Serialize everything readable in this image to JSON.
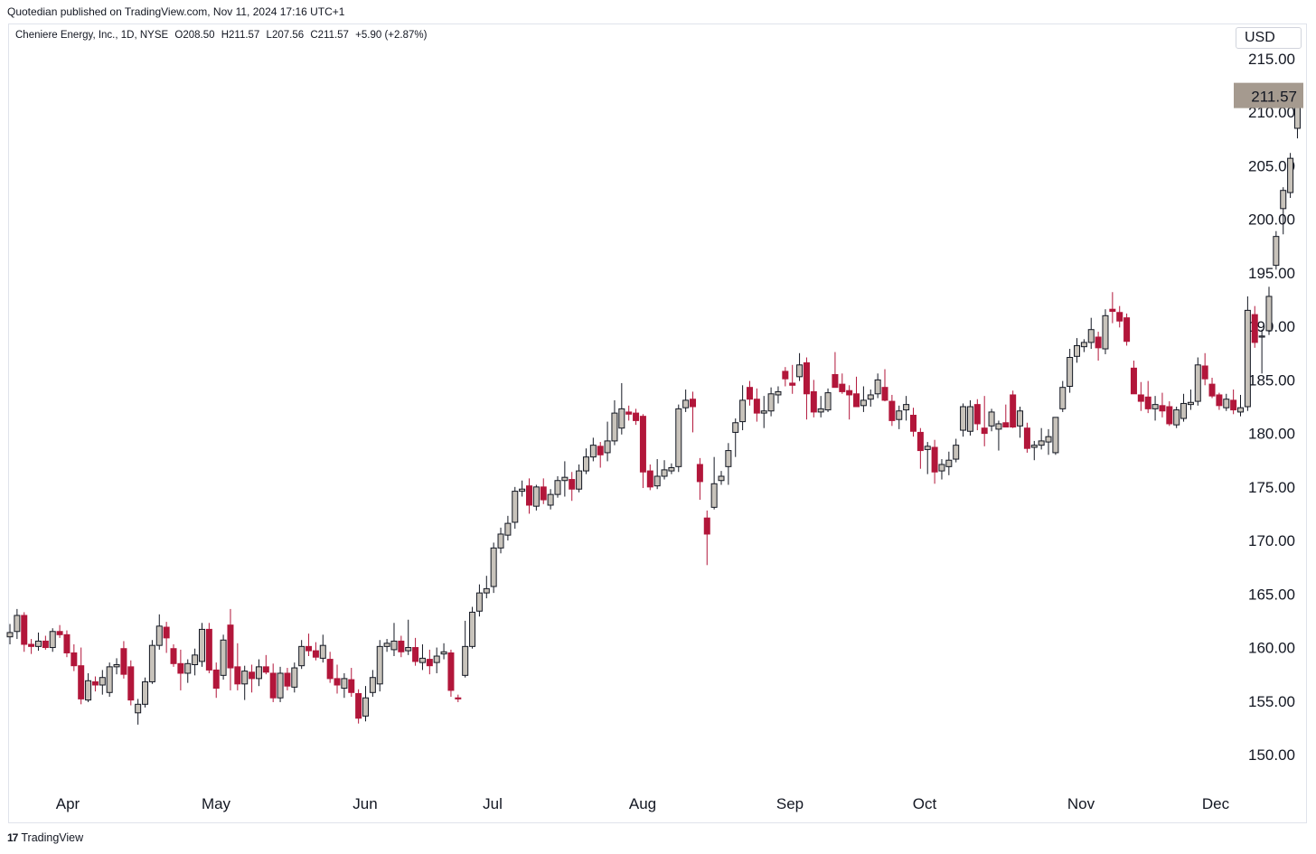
{
  "header": {
    "published": "Quotedian published on TradingView.com, Nov 11, 2024 17:16 UTC+1"
  },
  "legend": {
    "symbol": "Cheniere Energy, Inc., 1D, NYSE",
    "open": "O208.50",
    "high": "H211.57",
    "low": "L207.56",
    "close": "C211.57",
    "change": "+5.90 (+2.87%)"
  },
  "currency": "USD",
  "last_price_label": "211.57",
  "footer": {
    "logo": "17",
    "brand": "TradingView"
  },
  "colors": {
    "up": "#c8c3bb",
    "down": "#b2163a",
    "wick": "#131722",
    "price_tag": "#a59a8f"
  },
  "chart_data": {
    "type": "candlestick",
    "title": "Cheniere Energy, Inc., 1D, NYSE",
    "ylim": [
      147,
      217
    ],
    "yticks": [
      "150.00",
      "155.00",
      "160.00",
      "165.00",
      "170.00",
      "175.00",
      "180.00",
      "185.00",
      "190.00",
      "195.00",
      "200.00",
      "205.00",
      "210.00",
      "215.00"
    ],
    "xticks": [
      "Apr",
      "May",
      "Jun",
      "Jul",
      "Aug",
      "Sep",
      "Oct",
      "Nov",
      "Dec"
    ],
    "last_price": 211.57,
    "candles": [
      {
        "o": 161.0,
        "h": 162.2,
        "l": 160.3,
        "c": 161.4
      },
      {
        "o": 161.5,
        "h": 163.6,
        "l": 160.8,
        "c": 163.0
      },
      {
        "o": 163.0,
        "h": 163.3,
        "l": 159.6,
        "c": 160.3
      },
      {
        "o": 160.3,
        "h": 160.8,
        "l": 159.4,
        "c": 160.1
      },
      {
        "o": 160.1,
        "h": 161.4,
        "l": 159.7,
        "c": 160.6
      },
      {
        "o": 160.6,
        "h": 161.1,
        "l": 159.8,
        "c": 160.0
      },
      {
        "o": 160.0,
        "h": 161.8,
        "l": 159.6,
        "c": 161.5
      },
      {
        "o": 161.5,
        "h": 162.1,
        "l": 160.9,
        "c": 161.2
      },
      {
        "o": 161.2,
        "h": 161.6,
        "l": 159.1,
        "c": 159.5
      },
      {
        "o": 159.5,
        "h": 160.3,
        "l": 157.8,
        "c": 158.3
      },
      {
        "o": 158.3,
        "h": 160.0,
        "l": 154.7,
        "c": 155.2
      },
      {
        "o": 155.1,
        "h": 157.6,
        "l": 154.9,
        "c": 156.9
      },
      {
        "o": 156.8,
        "h": 157.3,
        "l": 155.9,
        "c": 156.5
      },
      {
        "o": 156.5,
        "h": 157.9,
        "l": 155.6,
        "c": 157.2
      },
      {
        "o": 155.8,
        "h": 158.6,
        "l": 155.4,
        "c": 158.2
      },
      {
        "o": 158.2,
        "h": 159.0,
        "l": 157.5,
        "c": 158.4
      },
      {
        "o": 159.9,
        "h": 160.6,
        "l": 157.1,
        "c": 157.5
      },
      {
        "o": 158.2,
        "h": 158.8,
        "l": 154.6,
        "c": 155.1
      },
      {
        "o": 153.9,
        "h": 155.2,
        "l": 152.8,
        "c": 154.7
      },
      {
        "o": 154.7,
        "h": 157.2,
        "l": 154.4,
        "c": 156.8
      },
      {
        "o": 156.8,
        "h": 160.7,
        "l": 156.6,
        "c": 160.2
      },
      {
        "o": 160.2,
        "h": 163.1,
        "l": 159.8,
        "c": 162.0
      },
      {
        "o": 161.9,
        "h": 162.4,
        "l": 159.5,
        "c": 160.9
      },
      {
        "o": 159.9,
        "h": 160.3,
        "l": 158.2,
        "c": 158.5
      },
      {
        "o": 158.5,
        "h": 159.8,
        "l": 156.0,
        "c": 157.6
      },
      {
        "o": 157.6,
        "h": 158.9,
        "l": 156.7,
        "c": 158.5
      },
      {
        "o": 158.4,
        "h": 159.9,
        "l": 157.4,
        "c": 159.3
      },
      {
        "o": 158.7,
        "h": 162.3,
        "l": 158.2,
        "c": 161.7
      },
      {
        "o": 161.7,
        "h": 162.3,
        "l": 157.6,
        "c": 157.9
      },
      {
        "o": 157.9,
        "h": 158.6,
        "l": 155.3,
        "c": 156.2
      },
      {
        "o": 157.4,
        "h": 161.2,
        "l": 157.0,
        "c": 160.7
      },
      {
        "o": 162.1,
        "h": 163.6,
        "l": 156.0,
        "c": 158.1
      },
      {
        "o": 158.2,
        "h": 160.4,
        "l": 156.0,
        "c": 156.6
      },
      {
        "o": 156.6,
        "h": 158.3,
        "l": 155.1,
        "c": 157.8
      },
      {
        "o": 157.7,
        "h": 158.4,
        "l": 155.8,
        "c": 157.1
      },
      {
        "o": 157.1,
        "h": 158.9,
        "l": 156.4,
        "c": 158.2
      },
      {
        "o": 158.2,
        "h": 159.3,
        "l": 157.5,
        "c": 157.7
      },
      {
        "o": 157.6,
        "h": 158.5,
        "l": 154.9,
        "c": 155.3
      },
      {
        "o": 155.3,
        "h": 158.2,
        "l": 154.9,
        "c": 157.6
      },
      {
        "o": 157.6,
        "h": 158.1,
        "l": 156.0,
        "c": 156.4
      },
      {
        "o": 156.3,
        "h": 158.6,
        "l": 155.8,
        "c": 158.1
      },
      {
        "o": 158.3,
        "h": 160.7,
        "l": 158.0,
        "c": 160.1
      },
      {
        "o": 160.1,
        "h": 161.3,
        "l": 159.2,
        "c": 159.7
      },
      {
        "o": 159.7,
        "h": 160.5,
        "l": 158.8,
        "c": 159.1
      },
      {
        "o": 159.0,
        "h": 161.2,
        "l": 158.6,
        "c": 160.2
      },
      {
        "o": 158.9,
        "h": 159.6,
        "l": 156.7,
        "c": 157.1
      },
      {
        "o": 157.1,
        "h": 158.4,
        "l": 155.7,
        "c": 156.5
      },
      {
        "o": 156.2,
        "h": 157.6,
        "l": 155.3,
        "c": 157.1
      },
      {
        "o": 157.0,
        "h": 158.1,
        "l": 155.4,
        "c": 155.8
      },
      {
        "o": 155.7,
        "h": 156.1,
        "l": 152.9,
        "c": 153.4
      },
      {
        "o": 153.6,
        "h": 156.4,
        "l": 153.1,
        "c": 155.3
      },
      {
        "o": 155.8,
        "h": 157.9,
        "l": 155.4,
        "c": 157.2
      },
      {
        "o": 156.6,
        "h": 160.7,
        "l": 155.9,
        "c": 160.1
      },
      {
        "o": 160.1,
        "h": 160.8,
        "l": 159.6,
        "c": 160.4
      },
      {
        "o": 159.8,
        "h": 162.3,
        "l": 159.2,
        "c": 160.6
      },
      {
        "o": 160.6,
        "h": 161.1,
        "l": 159.1,
        "c": 159.6
      },
      {
        "o": 159.7,
        "h": 162.6,
        "l": 159.3,
        "c": 160.0
      },
      {
        "o": 160.0,
        "h": 160.9,
        "l": 158.3,
        "c": 158.7
      },
      {
        "o": 158.6,
        "h": 160.3,
        "l": 157.9,
        "c": 159.0
      },
      {
        "o": 158.9,
        "h": 159.8,
        "l": 157.5,
        "c": 158.3
      },
      {
        "o": 158.6,
        "h": 160.0,
        "l": 157.6,
        "c": 159.2
      },
      {
        "o": 159.4,
        "h": 160.4,
        "l": 158.9,
        "c": 159.6
      },
      {
        "o": 159.5,
        "h": 159.8,
        "l": 155.4,
        "c": 156.0
      },
      {
        "o": 155.3,
        "h": 155.6,
        "l": 154.9,
        "c": 155.2
      },
      {
        "o": 157.4,
        "h": 162.5,
        "l": 157.2,
        "c": 160.1
      },
      {
        "o": 160.1,
        "h": 163.8,
        "l": 159.9,
        "c": 163.3
      },
      {
        "o": 163.4,
        "h": 165.9,
        "l": 162.9,
        "c": 165.1
      },
      {
        "o": 165.1,
        "h": 166.7,
        "l": 164.6,
        "c": 165.5
      },
      {
        "o": 165.7,
        "h": 169.8,
        "l": 165.1,
        "c": 169.3
      },
      {
        "o": 169.3,
        "h": 171.2,
        "l": 168.8,
        "c": 170.6
      },
      {
        "o": 170.5,
        "h": 172.3,
        "l": 170.0,
        "c": 171.6
      },
      {
        "o": 171.7,
        "h": 175.0,
        "l": 171.1,
        "c": 174.6
      },
      {
        "o": 174.6,
        "h": 175.6,
        "l": 174.1,
        "c": 174.8
      },
      {
        "o": 175.1,
        "h": 175.8,
        "l": 172.5,
        "c": 173.3
      },
      {
        "o": 173.2,
        "h": 175.2,
        "l": 172.8,
        "c": 175.0
      },
      {
        "o": 175.0,
        "h": 175.8,
        "l": 173.4,
        "c": 173.8
      },
      {
        "o": 173.3,
        "h": 174.8,
        "l": 172.9,
        "c": 174.3
      },
      {
        "o": 174.3,
        "h": 176.0,
        "l": 174.0,
        "c": 175.6
      },
      {
        "o": 175.6,
        "h": 177.4,
        "l": 174.1,
        "c": 175.9
      },
      {
        "o": 175.7,
        "h": 176.4,
        "l": 173.7,
        "c": 174.8
      },
      {
        "o": 174.8,
        "h": 177.1,
        "l": 174.5,
        "c": 176.5
      },
      {
        "o": 176.5,
        "h": 178.6,
        "l": 176.2,
        "c": 177.8
      },
      {
        "o": 177.8,
        "h": 179.6,
        "l": 177.4,
        "c": 178.9
      },
      {
        "o": 178.8,
        "h": 179.2,
        "l": 176.8,
        "c": 178.0
      },
      {
        "o": 178.2,
        "h": 181.1,
        "l": 177.4,
        "c": 179.3
      },
      {
        "o": 179.3,
        "h": 183.1,
        "l": 178.9,
        "c": 181.9
      },
      {
        "o": 180.5,
        "h": 184.7,
        "l": 179.9,
        "c": 182.3
      },
      {
        "o": 182.0,
        "h": 182.6,
        "l": 181.2,
        "c": 181.8
      },
      {
        "o": 181.9,
        "h": 182.3,
        "l": 180.8,
        "c": 181.2
      },
      {
        "o": 181.6,
        "h": 181.8,
        "l": 174.9,
        "c": 176.4
      },
      {
        "o": 176.5,
        "h": 177.1,
        "l": 174.7,
        "c": 175.0
      },
      {
        "o": 175.1,
        "h": 177.6,
        "l": 174.8,
        "c": 176.0
      },
      {
        "o": 176.0,
        "h": 177.5,
        "l": 175.7,
        "c": 176.6
      },
      {
        "o": 176.5,
        "h": 177.2,
        "l": 176.2,
        "c": 176.8
      },
      {
        "o": 176.9,
        "h": 182.7,
        "l": 176.4,
        "c": 182.3
      },
      {
        "o": 182.4,
        "h": 184.1,
        "l": 182.0,
        "c": 183.1
      },
      {
        "o": 183.2,
        "h": 183.9,
        "l": 180.1,
        "c": 182.5
      },
      {
        "o": 177.1,
        "h": 177.7,
        "l": 173.8,
        "c": 175.5
      },
      {
        "o": 172.1,
        "h": 172.8,
        "l": 167.7,
        "c": 170.6
      },
      {
        "o": 173.1,
        "h": 177.8,
        "l": 172.9,
        "c": 175.3
      },
      {
        "o": 175.6,
        "h": 176.5,
        "l": 175.2,
        "c": 176.0
      },
      {
        "o": 176.9,
        "h": 179.1,
        "l": 175.2,
        "c": 178.4
      },
      {
        "o": 180.1,
        "h": 181.4,
        "l": 177.8,
        "c": 181.0
      },
      {
        "o": 181.1,
        "h": 184.5,
        "l": 180.3,
        "c": 183.1
      },
      {
        "o": 184.3,
        "h": 184.9,
        "l": 182.6,
        "c": 183.2
      },
      {
        "o": 183.2,
        "h": 184.2,
        "l": 181.1,
        "c": 181.9
      },
      {
        "o": 181.9,
        "h": 183.5,
        "l": 180.5,
        "c": 182.1
      },
      {
        "o": 182.1,
        "h": 184.3,
        "l": 181.6,
        "c": 183.7
      },
      {
        "o": 183.6,
        "h": 184.4,
        "l": 182.8,
        "c": 183.9
      },
      {
        "o": 185.8,
        "h": 186.2,
        "l": 184.4,
        "c": 185.1
      },
      {
        "o": 184.7,
        "h": 186.4,
        "l": 183.7,
        "c": 184.5
      },
      {
        "o": 185.3,
        "h": 187.5,
        "l": 184.9,
        "c": 186.4
      },
      {
        "o": 186.6,
        "h": 187.1,
        "l": 181.3,
        "c": 183.7
      },
      {
        "o": 183.9,
        "h": 185.0,
        "l": 181.5,
        "c": 182.0
      },
      {
        "o": 182.0,
        "h": 183.5,
        "l": 181.5,
        "c": 182.3
      },
      {
        "o": 182.2,
        "h": 184.2,
        "l": 182.0,
        "c": 183.8
      },
      {
        "o": 185.5,
        "h": 187.6,
        "l": 184.6,
        "c": 184.3
      },
      {
        "o": 184.6,
        "h": 185.6,
        "l": 183.7,
        "c": 183.9
      },
      {
        "o": 184.0,
        "h": 184.5,
        "l": 181.3,
        "c": 183.6
      },
      {
        "o": 183.7,
        "h": 185.3,
        "l": 183.2,
        "c": 182.5
      },
      {
        "o": 182.6,
        "h": 184.4,
        "l": 182.0,
        "c": 183.1
      },
      {
        "o": 183.2,
        "h": 184.1,
        "l": 182.5,
        "c": 183.6
      },
      {
        "o": 183.7,
        "h": 185.6,
        "l": 183.3,
        "c": 185.0
      },
      {
        "o": 184.3,
        "h": 186.0,
        "l": 183.0,
        "c": 183.1
      },
      {
        "o": 183.0,
        "h": 183.6,
        "l": 180.7,
        "c": 181.2
      },
      {
        "o": 181.3,
        "h": 182.6,
        "l": 180.4,
        "c": 182.1
      },
      {
        "o": 182.2,
        "h": 183.5,
        "l": 181.2,
        "c": 182.7
      },
      {
        "o": 181.7,
        "h": 182.4,
        "l": 179.7,
        "c": 180.2
      },
      {
        "o": 180.1,
        "h": 180.5,
        "l": 176.7,
        "c": 178.4
      },
      {
        "o": 178.5,
        "h": 179.2,
        "l": 176.2,
        "c": 178.8
      },
      {
        "o": 178.7,
        "h": 179.4,
        "l": 175.3,
        "c": 176.4
      },
      {
        "o": 176.5,
        "h": 177.6,
        "l": 175.7,
        "c": 177.1
      },
      {
        "o": 176.9,
        "h": 178.3,
        "l": 176.1,
        "c": 177.5
      },
      {
        "o": 177.6,
        "h": 179.5,
        "l": 177.3,
        "c": 178.9
      },
      {
        "o": 180.3,
        "h": 182.8,
        "l": 179.7,
        "c": 182.5
      },
      {
        "o": 180.2,
        "h": 183.1,
        "l": 179.8,
        "c": 182.5
      },
      {
        "o": 182.7,
        "h": 183.2,
        "l": 180.3,
        "c": 180.9
      },
      {
        "o": 180.5,
        "h": 183.5,
        "l": 178.8,
        "c": 180.0
      },
      {
        "o": 180.7,
        "h": 182.3,
        "l": 180.2,
        "c": 182.0
      },
      {
        "o": 180.4,
        "h": 181.2,
        "l": 178.4,
        "c": 180.9
      },
      {
        "o": 181.0,
        "h": 182.7,
        "l": 180.6,
        "c": 180.6
      },
      {
        "o": 183.6,
        "h": 184.0,
        "l": 180.5,
        "c": 180.6
      },
      {
        "o": 180.7,
        "h": 182.5,
        "l": 179.6,
        "c": 182.1
      },
      {
        "o": 180.5,
        "h": 181.0,
        "l": 178.2,
        "c": 178.6
      },
      {
        "o": 178.7,
        "h": 179.3,
        "l": 177.5,
        "c": 178.9
      },
      {
        "o": 178.9,
        "h": 180.5,
        "l": 178.5,
        "c": 179.3
      },
      {
        "o": 179.2,
        "h": 180.4,
        "l": 178.0,
        "c": 179.7
      },
      {
        "o": 178.2,
        "h": 181.5,
        "l": 178.0,
        "c": 181.5
      },
      {
        "o": 182.3,
        "h": 184.9,
        "l": 182.0,
        "c": 184.3
      },
      {
        "o": 184.4,
        "h": 187.9,
        "l": 183.8,
        "c": 187.1
      },
      {
        "o": 187.2,
        "h": 188.9,
        "l": 186.6,
        "c": 188.2
      },
      {
        "o": 188.1,
        "h": 188.8,
        "l": 187.6,
        "c": 188.5
      },
      {
        "o": 188.5,
        "h": 190.8,
        "l": 187.9,
        "c": 189.7
      },
      {
        "o": 189.0,
        "h": 189.5,
        "l": 186.8,
        "c": 188.0
      },
      {
        "o": 187.9,
        "h": 191.6,
        "l": 187.4,
        "c": 191.0
      },
      {
        "o": 191.6,
        "h": 193.2,
        "l": 190.3,
        "c": 191.4
      },
      {
        "o": 191.3,
        "h": 191.9,
        "l": 189.9,
        "c": 190.5
      },
      {
        "o": 190.8,
        "h": 191.2,
        "l": 188.2,
        "c": 188.6
      },
      {
        "o": 186.1,
        "h": 186.8,
        "l": 184.1,
        "c": 183.7
      },
      {
        "o": 183.6,
        "h": 184.8,
        "l": 182.1,
        "c": 183.0
      },
      {
        "o": 183.4,
        "h": 184.9,
        "l": 181.9,
        "c": 182.3
      },
      {
        "o": 182.3,
        "h": 183.5,
        "l": 181.2,
        "c": 182.7
      },
      {
        "o": 182.6,
        "h": 183.8,
        "l": 181.5,
        "c": 182.1
      },
      {
        "o": 182.5,
        "h": 183.0,
        "l": 180.7,
        "c": 180.9
      },
      {
        "o": 180.8,
        "h": 182.5,
        "l": 180.5,
        "c": 182.2
      },
      {
        "o": 181.4,
        "h": 183.7,
        "l": 181.1,
        "c": 182.8
      },
      {
        "o": 182.7,
        "h": 184.1,
        "l": 182.2,
        "c": 182.9
      },
      {
        "o": 183.0,
        "h": 187.1,
        "l": 182.6,
        "c": 186.4
      },
      {
        "o": 186.3,
        "h": 187.5,
        "l": 184.5,
        "c": 185.1
      },
      {
        "o": 184.6,
        "h": 185.2,
        "l": 183.3,
        "c": 183.5
      },
      {
        "o": 183.6,
        "h": 183.8,
        "l": 182.2,
        "c": 182.6
      },
      {
        "o": 182.4,
        "h": 183.7,
        "l": 182.1,
        "c": 183.2
      },
      {
        "o": 183.1,
        "h": 184.1,
        "l": 181.8,
        "c": 182.2
      },
      {
        "o": 182.0,
        "h": 183.6,
        "l": 181.6,
        "c": 182.4
      },
      {
        "o": 182.5,
        "h": 192.8,
        "l": 182.1,
        "c": 191.5
      },
      {
        "o": 191.1,
        "h": 191.9,
        "l": 188.0,
        "c": 188.5
      },
      {
        "o": 189.1,
        "h": 189.7,
        "l": 185.6,
        "c": 189.1
      },
      {
        "o": 189.6,
        "h": 193.7,
        "l": 189.2,
        "c": 192.8
      },
      {
        "o": 195.7,
        "h": 198.9,
        "l": 195.3,
        "c": 198.4
      },
      {
        "o": 201.0,
        "h": 203.0,
        "l": 198.6,
        "c": 202.7
      },
      {
        "o": 202.5,
        "h": 206.2,
        "l": 202.0,
        "c": 205.7
      },
      {
        "o": 208.5,
        "h": 211.57,
        "l": 207.56,
        "c": 211.57
      }
    ]
  }
}
